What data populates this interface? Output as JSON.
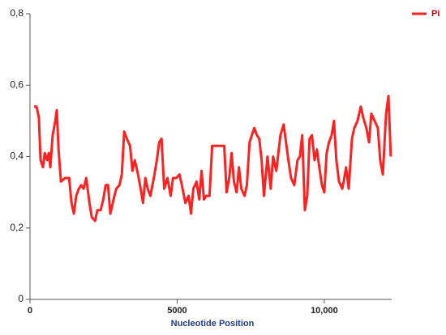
{
  "chart_data": {
    "type": "line",
    "x_label": "Nucleotide Position",
    "xlim": [
      0,
      12290
    ],
    "xticks": [
      0,
      5000,
      {
        "value": 10000,
        "label": "10,000"
      }
    ],
    "ylim": [
      0,
      0.8
    ],
    "yticks": [
      0,
      {
        "value": 0.2,
        "label": "0,2"
      },
      {
        "value": 0.4,
        "label": "0,4"
      },
      {
        "value": 0.6,
        "label": "0,6"
      },
      {
        "value": 0.8,
        "label": "0,8"
      }
    ],
    "x": [
      140,
      220,
      300,
      360,
      440,
      500,
      580,
      640,
      690,
      770,
      860,
      910,
      970,
      1050,
      1190,
      1330,
      1410,
      1490,
      1570,
      1660,
      1740,
      1820,
      1910,
      2020,
      2100,
      2210,
      2290,
      2400,
      2490,
      2570,
      2650,
      2730,
      2840,
      2930,
      3040,
      3120,
      3200,
      3290,
      3400,
      3480,
      3560,
      3670,
      3760,
      3840,
      3920,
      4000,
      4090,
      4230,
      4310,
      4390,
      4470,
      4560,
      4670,
      4780,
      4860,
      4970,
      5080,
      5160,
      5280,
      5390,
      5470,
      5550,
      5660,
      5750,
      5830,
      5910,
      5990,
      6100,
      6190,
      6330,
      6490,
      6600,
      6680,
      6770,
      6850,
      6930,
      7020,
      7100,
      7180,
      7290,
      7370,
      7460,
      7540,
      7620,
      7710,
      7790,
      7870,
      7950,
      8070,
      8180,
      8260,
      8370,
      8510,
      8620,
      8700,
      8780,
      8870,
      8980,
      9090,
      9170,
      9250,
      9340,
      9420,
      9500,
      9580,
      9670,
      9750,
      9830,
      9920,
      10000,
      10080,
      10160,
      10250,
      10330,
      10410,
      10500,
      10610,
      10660,
      10740,
      10830,
      10940,
      11020,
      11130,
      11240,
      11320,
      11430,
      11520,
      11600,
      11710,
      11820,
      11900,
      11990,
      12100,
      12180,
      12260
    ],
    "series": [
      {
        "name": "Pi",
        "color": "#ff2020",
        "values": [
          0.54,
          0.54,
          0.51,
          0.39,
          0.37,
          0.41,
          0.39,
          0.41,
          0.37,
          0.46,
          0.5,
          0.53,
          0.42,
          0.33,
          0.34,
          0.34,
          0.27,
          0.24,
          0.29,
          0.31,
          0.32,
          0.31,
          0.34,
          0.27,
          0.23,
          0.22,
          0.25,
          0.25,
          0.28,
          0.32,
          0.32,
          0.24,
          0.28,
          0.31,
          0.32,
          0.35,
          0.47,
          0.45,
          0.43,
          0.36,
          0.39,
          0.35,
          0.31,
          0.27,
          0.34,
          0.31,
          0.29,
          0.35,
          0.39,
          0.44,
          0.45,
          0.31,
          0.34,
          0.29,
          0.34,
          0.34,
          0.35,
          0.32,
          0.27,
          0.29,
          0.24,
          0.31,
          0.33,
          0.28,
          0.36,
          0.28,
          0.29,
          0.29,
          0.43,
          0.43,
          0.43,
          0.43,
          0.3,
          0.34,
          0.41,
          0.33,
          0.3,
          0.37,
          0.31,
          0.29,
          0.32,
          0.44,
          0.46,
          0.48,
          0.46,
          0.45,
          0.39,
          0.29,
          0.4,
          0.31,
          0.4,
          0.36,
          0.46,
          0.49,
          0.44,
          0.39,
          0.34,
          0.32,
          0.39,
          0.4,
          0.46,
          0.25,
          0.29,
          0.45,
          0.46,
          0.39,
          0.42,
          0.37,
          0.32,
          0.3,
          0.41,
          0.44,
          0.46,
          0.5,
          0.39,
          0.33,
          0.31,
          0.33,
          0.37,
          0.31,
          0.45,
          0.48,
          0.5,
          0.54,
          0.51,
          0.48,
          0.44,
          0.52,
          0.5,
          0.48,
          0.39,
          0.35,
          0.52,
          0.57,
          0.4
        ]
      }
    ],
    "legend": "top-right"
  }
}
